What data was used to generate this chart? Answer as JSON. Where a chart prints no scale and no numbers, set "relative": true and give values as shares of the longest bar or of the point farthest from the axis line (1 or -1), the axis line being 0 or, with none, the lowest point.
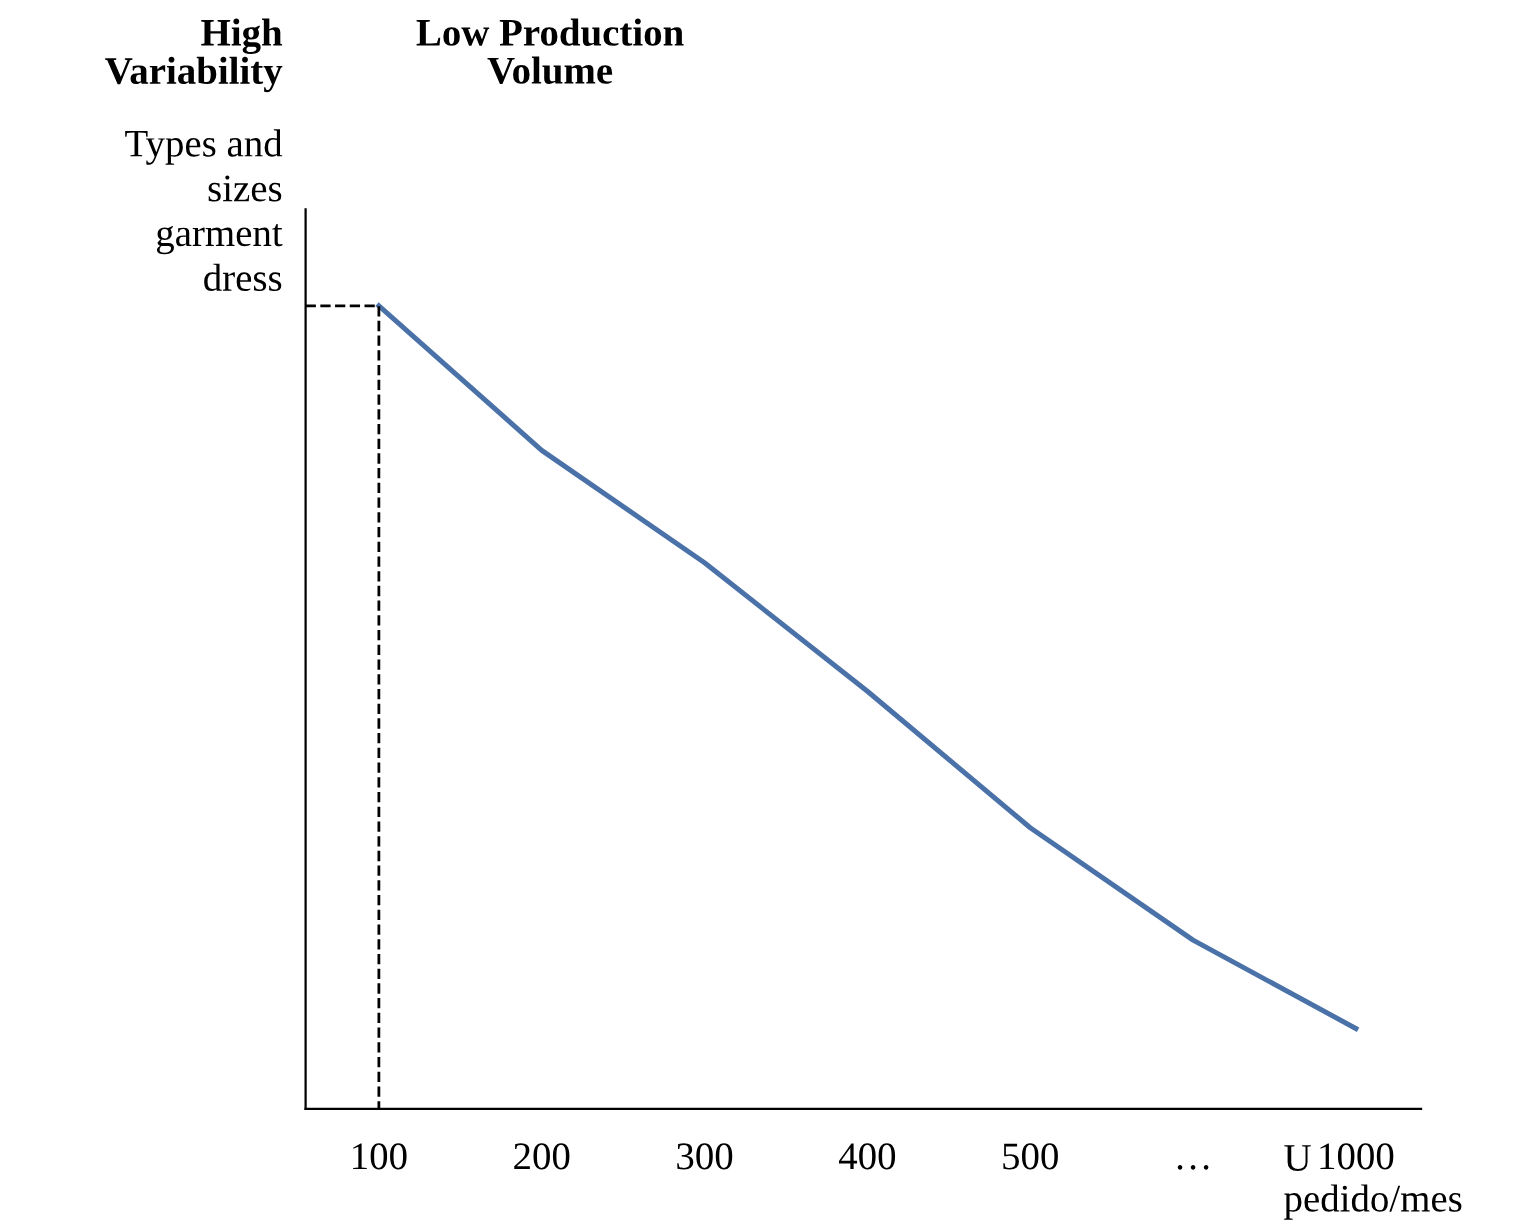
{
  "chart_data": {
    "type": "line",
    "relative": true,
    "title": "Low Production Volume",
    "ylabel": "Types and sizes garment dress",
    "xlabel": "U pedido/mes",
    "annotations": [
      "High Variability"
    ],
    "categories": [
      "100",
      "200",
      "300",
      "400",
      "500",
      "…",
      "1000"
    ],
    "series": [
      {
        "color": "#4a72a8",
        "values": [
          1,
          0.82,
          0.68,
          0.52,
          0.35,
          0.21,
          0.1
        ]
      }
    ],
    "grid": false,
    "legend": false,
    "marker": "none",
    "line_style": "solid"
  }
}
